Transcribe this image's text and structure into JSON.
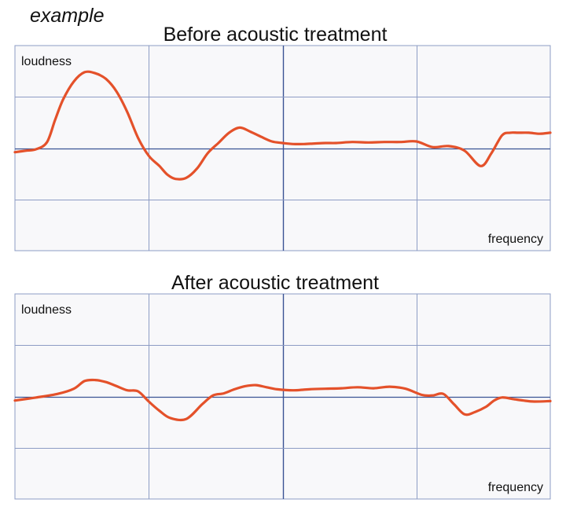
{
  "example_label": "example",
  "colors": {
    "line": "#e4512a",
    "grid": "#8d9cc4",
    "center_line": "#3a5394",
    "panel_bg": "#f8f8fa"
  },
  "chart_data": [
    {
      "type": "line",
      "title": "Before acoustic treatment",
      "ylabel": "loudness",
      "xlabel": "frequency",
      "xlim": [
        0,
        100
      ],
      "ylim": [
        -2,
        2
      ],
      "grid": true,
      "series": [
        {
          "x": [
            0,
            2,
            4,
            6,
            7.5,
            9,
            11,
            13,
            15,
            17,
            19,
            21,
            23,
            25,
            27,
            28.5,
            30,
            32,
            34,
            36,
            38,
            40,
            42,
            44,
            46,
            48,
            50,
            52,
            54,
            56,
            58,
            60,
            63,
            66,
            69,
            72,
            75,
            78,
            81,
            84,
            87,
            89,
            91,
            92.5,
            94,
            96,
            98,
            100
          ],
          "y": [
            -0.08,
            -0.05,
            -0.02,
            0.12,
            0.55,
            0.95,
            1.3,
            1.48,
            1.46,
            1.35,
            1.1,
            0.7,
            0.2,
            -0.15,
            -0.35,
            -0.52,
            -0.6,
            -0.58,
            -0.4,
            -0.1,
            0.1,
            0.3,
            0.4,
            0.32,
            0.22,
            0.13,
            0.1,
            0.08,
            0.08,
            0.09,
            0.1,
            0.1,
            0.12,
            0.11,
            0.12,
            0.12,
            0.13,
            0.02,
            0.04,
            -0.05,
            -0.35,
            -0.1,
            0.25,
            0.3,
            0.3,
            0.3,
            0.28,
            0.3
          ]
        }
      ]
    },
    {
      "type": "line",
      "title": "After acoustic treatment",
      "ylabel": "loudness",
      "xlabel": "frequency",
      "xlim": [
        0,
        100
      ],
      "ylim": [
        -2,
        2
      ],
      "grid": true,
      "series": [
        {
          "x": [
            0,
            4,
            8,
            11,
            13,
            15,
            17,
            19,
            21,
            23,
            25,
            27,
            29,
            32,
            35,
            37,
            39,
            41,
            43,
            45,
            47,
            49,
            52,
            55,
            58,
            61,
            64,
            67,
            70,
            73,
            76,
            78,
            80,
            82,
            84,
            86,
            88,
            89.5,
            91,
            93,
            95,
            97,
            100
          ],
          "y": [
            -0.08,
            -0.02,
            0.05,
            0.15,
            0.3,
            0.32,
            0.28,
            0.2,
            0.12,
            0.1,
            -0.1,
            -0.28,
            -0.42,
            -0.44,
            -0.15,
            0.02,
            0.06,
            0.14,
            0.2,
            0.22,
            0.18,
            0.14,
            0.12,
            0.14,
            0.15,
            0.16,
            0.18,
            0.16,
            0.19,
            0.15,
            0.03,
            0.02,
            0.05,
            -0.15,
            -0.35,
            -0.3,
            -0.2,
            -0.08,
            -0.02,
            -0.05,
            -0.08,
            -0.1,
            -0.09
          ]
        }
      ]
    }
  ]
}
